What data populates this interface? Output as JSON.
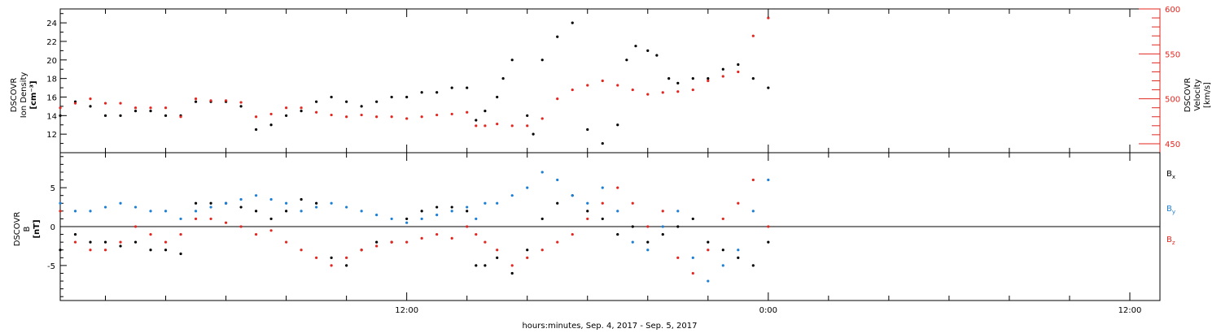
{
  "colors": {
    "black": "#000000",
    "red": "#e3261f",
    "blue": "#1b7fd6"
  },
  "x_axis": {
    "label": "hours:minutes, Sep.  4, 2017 - Sep.  5, 2017",
    "ticks": [
      {
        "hour": 12,
        "label": "12:00"
      },
      {
        "hour": 24,
        "label": "0:00"
      },
      {
        "hour": 36,
        "label": "12:00"
      }
    ]
  },
  "chart_data": [
    {
      "type": "scatter",
      "title": "",
      "xlabel": "hours:minutes, Sep.  4, 2017 - Sep.  5, 2017",
      "x_range_hours": [
        0.5,
        37
      ],
      "left_axis": {
        "label_lines": [
          "DSCOVR",
          "Ion Density",
          "[cm⁻³]"
        ],
        "ylim": [
          10,
          25.5
        ],
        "ticks": [
          "12",
          "14",
          "16",
          "18",
          "20",
          "22",
          "24"
        ]
      },
      "right_axis": {
        "label_lines": [
          "DSCOVR",
          "Velocity",
          "[km/s]"
        ],
        "ylim": [
          440,
          600
        ],
        "ticks": [
          "450",
          "500",
          "550",
          "600"
        ],
        "color": "#e3261f"
      },
      "series": [
        {
          "color": "#000000",
          "axis": "left",
          "x": [
            0.5,
            1.0,
            1.5,
            2.0,
            2.5,
            3.0,
            3.5,
            4.0,
            4.5,
            5.0,
            5.5,
            6.0,
            6.5,
            7.0,
            7.5,
            8.0,
            8.5,
            9.0,
            9.5,
            10.0,
            10.5,
            11.0,
            11.5,
            12.0,
            12.5,
            13.0,
            13.5,
            14.0,
            14.3,
            14.6,
            15.0,
            15.2,
            15.5,
            16.0,
            16.2,
            16.5,
            17.0,
            17.5,
            18.0,
            18.5,
            19.0,
            19.3,
            19.6,
            20.0,
            20.3,
            20.7,
            21.0,
            21.5,
            22.0,
            22.5,
            23.0,
            23.5,
            24.0
          ],
          "y": [
            14,
            15.5,
            15,
            14,
            14,
            14.5,
            14.5,
            14,
            14,
            15.5,
            15.5,
            15.5,
            15,
            12.5,
            13,
            14,
            14.5,
            15.5,
            16,
            15.5,
            15,
            15.5,
            16,
            16,
            16.5,
            16.5,
            17,
            17,
            13.5,
            14.5,
            16,
            18,
            20,
            14,
            12,
            20,
            22.5,
            24,
            12.5,
            11,
            13,
            20,
            21.5,
            21,
            20.5,
            18,
            17.5,
            18,
            18,
            19,
            19.5,
            18,
            17
          ]
        },
        {
          "color": "#e3261f",
          "axis": "right",
          "x": [
            0.5,
            1.0,
            1.5,
            2.0,
            2.5,
            3.0,
            3.5,
            4.0,
            4.5,
            5.0,
            5.5,
            6.0,
            6.5,
            7.0,
            7.5,
            8.0,
            8.5,
            9.0,
            9.5,
            10.0,
            10.5,
            11.0,
            11.5,
            12.0,
            12.5,
            13.0,
            13.5,
            14.0,
            14.3,
            14.6,
            15.0,
            15.5,
            16.0,
            16.5,
            17.0,
            17.5,
            18.0,
            18.5,
            19.0,
            19.5,
            20.0,
            20.5,
            21.0,
            21.5,
            22.0,
            22.5,
            23.0,
            23.5,
            24.0
          ],
          "y": [
            490,
            495,
            500,
            495,
            495,
            490,
            490,
            490,
            480,
            500,
            498,
            498,
            496,
            480,
            483,
            490,
            490,
            485,
            482,
            480,
            482,
            480,
            480,
            478,
            480,
            482,
            483,
            485,
            470,
            470,
            472,
            470,
            470,
            478,
            500,
            510,
            515,
            520,
            515,
            510,
            505,
            507,
            508,
            510,
            520,
            525,
            530,
            570,
            590
          ]
        }
      ]
    },
    {
      "type": "scatter",
      "title": "",
      "xlabel": "hours:minutes, Sep.  4, 2017 - Sep.  5, 2017",
      "x_range_hours": [
        0.5,
        37
      ],
      "left_axis": {
        "label_lines": [
          "DSCOVR",
          "B",
          "[nT]"
        ],
        "ylim": [
          -9.5,
          9.5
        ],
        "ticks": [
          "-5",
          "0",
          "5"
        ]
      },
      "zero_line": true,
      "legend_position": "right",
      "legend": [
        {
          "base": "B",
          "sub": "x",
          "color": "#000000"
        },
        {
          "base": "B",
          "sub": "y",
          "color": "#1b7fd6"
        },
        {
          "base": "B",
          "sub": "z",
          "color": "#e3261f"
        }
      ],
      "series": [
        {
          "name": "Bx",
          "color": "#000000",
          "x": [
            0.5,
            1.0,
            1.5,
            2.0,
            2.5,
            3.0,
            3.5,
            4.0,
            4.5,
            5.0,
            5.5,
            6.0,
            6.5,
            7.0,
            7.5,
            8.0,
            8.5,
            9.0,
            9.5,
            10.0,
            10.5,
            11.0,
            11.5,
            12.0,
            12.5,
            13.0,
            13.5,
            14.0,
            14.3,
            14.6,
            15.0,
            15.5,
            16.0,
            16.5,
            17.0,
            17.5,
            18.0,
            18.5,
            19.0,
            19.5,
            20.0,
            20.5,
            21.0,
            21.5,
            22.0,
            22.5,
            23.0,
            23.5,
            24.0
          ],
          "y": [
            -3,
            -1,
            -2,
            -2,
            -2.5,
            -2,
            -3,
            -3,
            -3.5,
            3,
            3,
            3,
            2.5,
            2,
            1,
            2,
            3.5,
            3,
            -4,
            -5,
            -3,
            -2,
            -2,
            1,
            2,
            2.5,
            2.5,
            2,
            -5,
            -5,
            -4,
            -6,
            -3,
            1,
            3,
            4,
            2,
            1,
            -1,
            0,
            -2,
            -1,
            0,
            1,
            -2,
            -3,
            -4,
            -5,
            -2
          ]
        },
        {
          "name": "By",
          "color": "#1b7fd6",
          "x": [
            0.5,
            1.0,
            1.5,
            2.0,
            2.5,
            3.0,
            3.5,
            4.0,
            4.5,
            5.0,
            5.5,
            6.0,
            6.5,
            7.0,
            7.5,
            8.0,
            8.5,
            9.0,
            9.5,
            10.0,
            10.5,
            11.0,
            11.5,
            12.0,
            12.5,
            13.0,
            13.5,
            14.0,
            14.3,
            14.6,
            15.0,
            15.5,
            16.0,
            16.5,
            17.0,
            17.5,
            18.0,
            18.5,
            19.0,
            19.5,
            20.0,
            20.5,
            21.0,
            21.5,
            22.0,
            22.5,
            23.0,
            23.5,
            24.0
          ],
          "y": [
            3,
            2,
            2,
            2.5,
            3,
            2.5,
            2,
            2,
            1,
            2,
            2.5,
            3,
            3.5,
            4,
            3.5,
            3,
            2,
            2.5,
            3,
            2.5,
            2,
            1.5,
            1,
            0.5,
            1,
            1.5,
            2,
            2.5,
            1,
            3,
            3,
            4,
            5,
            7,
            6,
            4,
            3,
            5,
            2,
            -2,
            -3,
            0,
            2,
            -4,
            -7,
            -5,
            -3,
            2,
            6
          ]
        },
        {
          "name": "Bz",
          "color": "#e3261f",
          "x": [
            0.5,
            1.0,
            1.5,
            2.0,
            2.5,
            3.0,
            3.5,
            4.0,
            4.5,
            5.0,
            5.5,
            6.0,
            6.5,
            7.0,
            7.5,
            8.0,
            8.5,
            9.0,
            9.5,
            10.0,
            10.5,
            11.0,
            11.5,
            12.0,
            12.5,
            13.0,
            13.5,
            14.0,
            14.3,
            14.6,
            15.0,
            15.5,
            16.0,
            16.5,
            17.0,
            17.5,
            18.0,
            18.5,
            19.0,
            19.5,
            20.0,
            20.5,
            21.0,
            21.5,
            22.0,
            22.5,
            23.0,
            23.5,
            24.0
          ],
          "y": [
            2,
            -2,
            -3,
            -3,
            -2,
            0,
            -1,
            -2,
            -1,
            1,
            1,
            0.5,
            0,
            -1,
            -0.5,
            -2,
            -3,
            -4,
            -5,
            -4,
            -3,
            -2.5,
            -2,
            -2,
            -1.5,
            -1,
            -1.5,
            0,
            -1,
            -2,
            -3,
            -5,
            -4,
            -3,
            -2,
            -1,
            1,
            3,
            5,
            3,
            0,
            2,
            -4,
            -6,
            -3,
            1,
            3,
            6,
            0
          ]
        }
      ]
    }
  ]
}
